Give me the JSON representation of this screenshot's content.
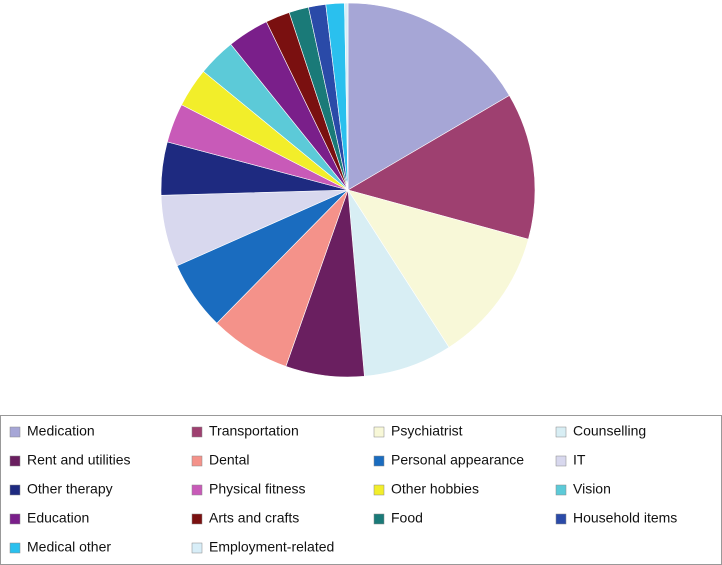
{
  "chart_data": {
    "type": "pie",
    "categories": [
      "Medication",
      "Transportation",
      "Psychiatrist",
      "Counselling",
      "Rent and utilities",
      "Dental",
      "Personal appearance",
      "IT",
      "Other therapy",
      "Physical fitness",
      "Other hobbies",
      "Vision",
      "Education",
      "Arts and crafts",
      "Food",
      "Household items",
      "Medical other",
      "Employment-related"
    ],
    "values": [
      16.6,
      12.7,
      11.7,
      7.7,
      6.8,
      7.0,
      6.0,
      6.2,
      4.6,
      3.4,
      3.4,
      3.3,
      3.6,
      2.1,
      1.7,
      1.5,
      1.6,
      0.3
    ],
    "colors": [
      "#a6a6d6",
      "#9e4070",
      "#f8f8d8",
      "#d8eef4",
      "#6a1f60",
      "#f4928a",
      "#1a6cbf",
      "#d8d8ee",
      "#1e2a80",
      "#c85ab8",
      "#f2ee2a",
      "#5ccad8",
      "#7a1f8a",
      "#7a1010",
      "#1a7a78",
      "#2a4aa8",
      "#2ac0ee",
      "#d8eef8"
    ],
    "legend": "bottom"
  }
}
